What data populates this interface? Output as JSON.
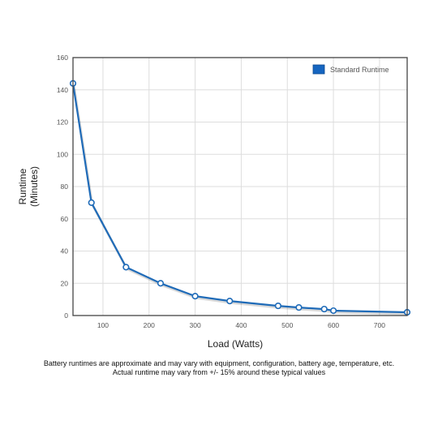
{
  "chart_data": {
    "type": "line",
    "xlabel": "Load (Watts)",
    "ylabel_lines": [
      "Runtime",
      "(Minutes)"
    ],
    "x_ticks": [
      100,
      200,
      300,
      400,
      500,
      600,
      700
    ],
    "y_ticks": [
      0,
      20,
      40,
      60,
      80,
      100,
      120,
      140,
      160
    ],
    "xlim": [
      35,
      760
    ],
    "ylim": [
      0,
      160
    ],
    "grid": true,
    "legend_position": "top-right",
    "series": [
      {
        "name": "Standard Runtime",
        "color": "#1f6bb8",
        "x": [
          35,
          75,
          150,
          225,
          300,
          375,
          480,
          525,
          580,
          600,
          760
        ],
        "y": [
          144,
          70,
          30,
          20,
          12,
          9,
          6,
          5,
          4,
          3,
          2
        ]
      }
    ]
  },
  "footnote": {
    "line1": "Battery runtimes are approximate and may vary with equipment, configuration, battery age, temperature, etc.",
    "line2": "Actual runtime may vary from +/- 15% around these typical values"
  }
}
